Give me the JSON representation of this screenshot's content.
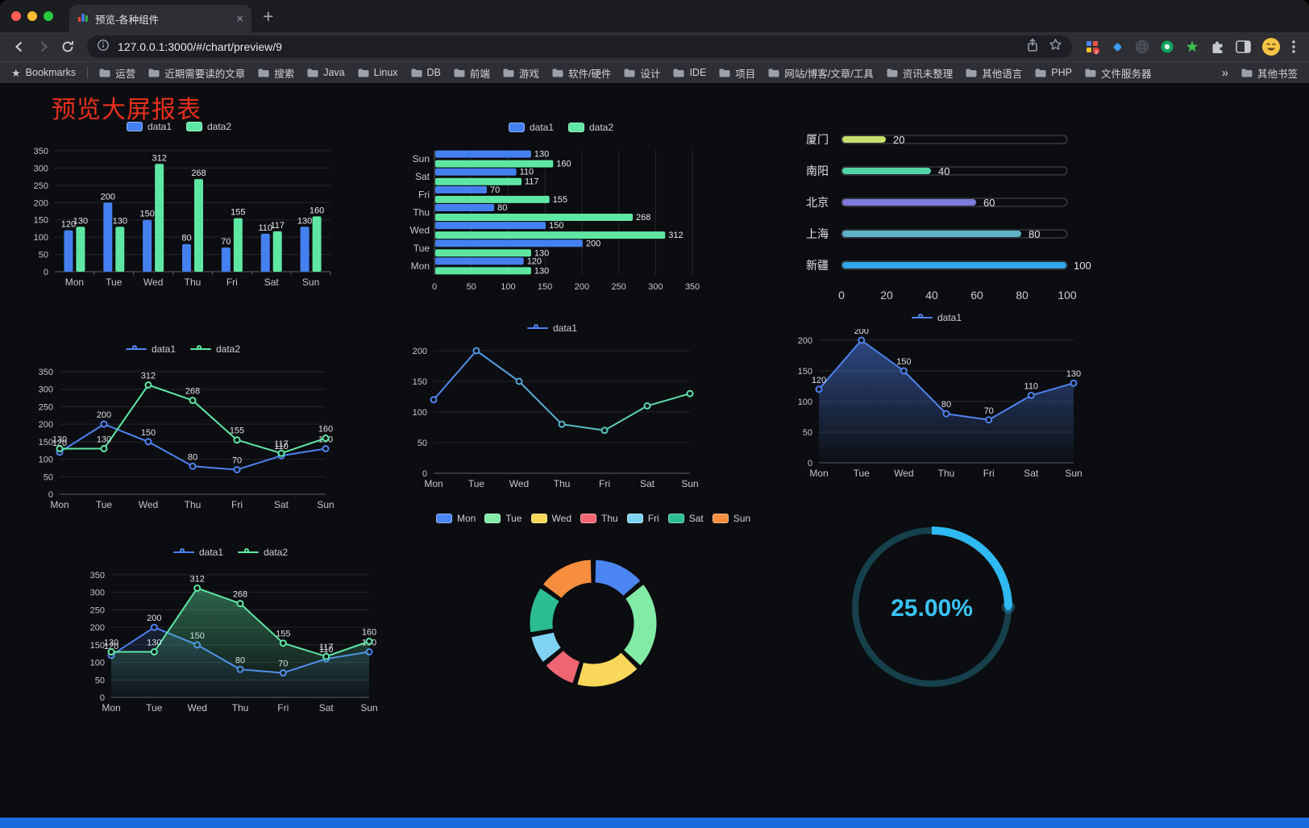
{
  "browser": {
    "tab_title": "预览-各种组件",
    "url": "127.0.0.1:3000/#/chart/preview/9",
    "extension_badge": "g",
    "bookmarks_bar": {
      "label": "Bookmarks",
      "folders": [
        "运营",
        "近期需要读的文章",
        "搜索",
        "Java",
        "Linux",
        "DB",
        "前端",
        "游戏",
        "软件/硬件",
        "设计",
        "IDE",
        "项目",
        "网站/博客/文章/工具",
        "资讯未整理",
        "其他语言",
        "PHP",
        "文件服务器"
      ],
      "overflow": "»",
      "other": "其他书签"
    }
  },
  "page": {
    "title": "预览大屏报表",
    "title_color": "#E6301C",
    "background": "#0C0D10",
    "footer_color": "#1B6ADE"
  },
  "chart_data": [
    {
      "id": "bar-grouped",
      "type": "bar",
      "legend_position": "top",
      "categories": [
        "Mon",
        "Tue",
        "Wed",
        "Thu",
        "Fri",
        "Sat",
        "Sun"
      ],
      "series": [
        {
          "name": "data1",
          "color": "#4480F0",
          "values": [
            120,
            200,
            150,
            80,
            70,
            110,
            130
          ]
        },
        {
          "name": "data2",
          "color": "#5EE7A3",
          "values": [
            130,
            130,
            312,
            268,
            155,
            117,
            160
          ]
        }
      ],
      "ylim": [
        0,
        350
      ],
      "ytick": 50,
      "labels": true
    },
    {
      "id": "bar-horizontal",
      "type": "barh",
      "legend_position": "top",
      "categories": [
        "Mon",
        "Tue",
        "Wed",
        "Thu",
        "Fri",
        "Sat",
        "Sun"
      ],
      "series": [
        {
          "name": "data1",
          "color": "#4480F0",
          "values": [
            120,
            200,
            150,
            80,
            70,
            110,
            130
          ]
        },
        {
          "name": "data2",
          "color": "#5EE7A3",
          "values": [
            130,
            130,
            312,
            268,
            155,
            117,
            160
          ]
        }
      ],
      "xlim": [
        0,
        350
      ],
      "xtick": 50,
      "labels": true
    },
    {
      "id": "progress-bars",
      "type": "progress",
      "rows": [
        {
          "name": "厦门",
          "value": 20,
          "color": "#C8DF6E"
        },
        {
          "name": "南阳",
          "value": 40,
          "color": "#50D5A5"
        },
        {
          "name": "北京",
          "value": 60,
          "color": "#7E7BDB"
        },
        {
          "name": "上海",
          "value": 80,
          "color": "#5FB2C7"
        },
        {
          "name": "新疆",
          "value": 100,
          "color": "#32A5E6"
        }
      ],
      "xlim": [
        0,
        100
      ],
      "xticks": [
        0,
        20,
        40,
        60,
        80,
        100
      ]
    },
    {
      "id": "line-two",
      "type": "line",
      "legend_position": "top",
      "categories": [
        "Mon",
        "Tue",
        "Wed",
        "Thu",
        "Fri",
        "Sat",
        "Sun"
      ],
      "series": [
        {
          "name": "data1",
          "color": "#4E83F0",
          "values": [
            120,
            200,
            150,
            80,
            70,
            110,
            130
          ]
        },
        {
          "name": "data2",
          "color": "#5EE7A3",
          "values": [
            130,
            130,
            312,
            268,
            155,
            117,
            160
          ]
        }
      ],
      "ylim": [
        0,
        350
      ],
      "ytick": 50,
      "labels": true
    },
    {
      "id": "line-one",
      "type": "line",
      "legend_position": "top",
      "categories": [
        "Mon",
        "Tue",
        "Wed",
        "Thu",
        "Fri",
        "Sat",
        "Sun"
      ],
      "series": [
        {
          "name": "data1",
          "colors": [
            "#4E83F0",
            "#5EE7A3"
          ],
          "values": [
            120,
            200,
            150,
            80,
            70,
            110,
            130
          ]
        }
      ],
      "ylim": [
        0,
        200
      ],
      "ytick": 50,
      "labels": false
    },
    {
      "id": "area-one",
      "type": "line",
      "legend_position": "top",
      "categories": [
        "Mon",
        "Tue",
        "Wed",
        "Thu",
        "Fri",
        "Sat",
        "Sun"
      ],
      "series": [
        {
          "name": "data1",
          "color": "#4E83F0",
          "area": true,
          "area_opacity": 0.5,
          "values": [
            120,
            200,
            150,
            80,
            70,
            110,
            130
          ]
        }
      ],
      "ylim": [
        0,
        200
      ],
      "ytick": 50,
      "labels": true
    },
    {
      "id": "area-two",
      "type": "line",
      "legend_position": "top",
      "categories": [
        "Mon",
        "Tue",
        "Wed",
        "Thu",
        "Fri",
        "Sat",
        "Sun"
      ],
      "series": [
        {
          "name": "data1",
          "color": "#4E83F0",
          "area": true,
          "area_opacity": 0.3,
          "values": [
            120,
            200,
            150,
            80,
            70,
            110,
            130
          ]
        },
        {
          "name": "data2",
          "color": "#5EE7A3",
          "area": true,
          "area_opacity": 0.45,
          "values": [
            130,
            130,
            312,
            268,
            155,
            117,
            160
          ]
        }
      ],
      "ylim": [
        0,
        350
      ],
      "ytick": 50,
      "labels": true
    },
    {
      "id": "donut",
      "type": "pie",
      "legend_position": "top",
      "legend": [
        "Mon",
        "Tue",
        "Wed",
        "Thu",
        "Fri",
        "Sat",
        "Sun"
      ],
      "values": [
        120,
        200,
        150,
        80,
        70,
        110,
        130
      ],
      "colors": [
        "#4C86F2",
        "#82EBA6",
        "#F8D75A",
        "#EF6672",
        "#7ED2F4",
        "#2CBE91",
        "#F78D3F"
      ]
    },
    {
      "id": "gauge",
      "type": "gauge",
      "value": 25,
      "label": "25.00%",
      "color": "#2EB9F2",
      "track": "#15404C",
      "text_color": "#3AC3F6"
    }
  ]
}
